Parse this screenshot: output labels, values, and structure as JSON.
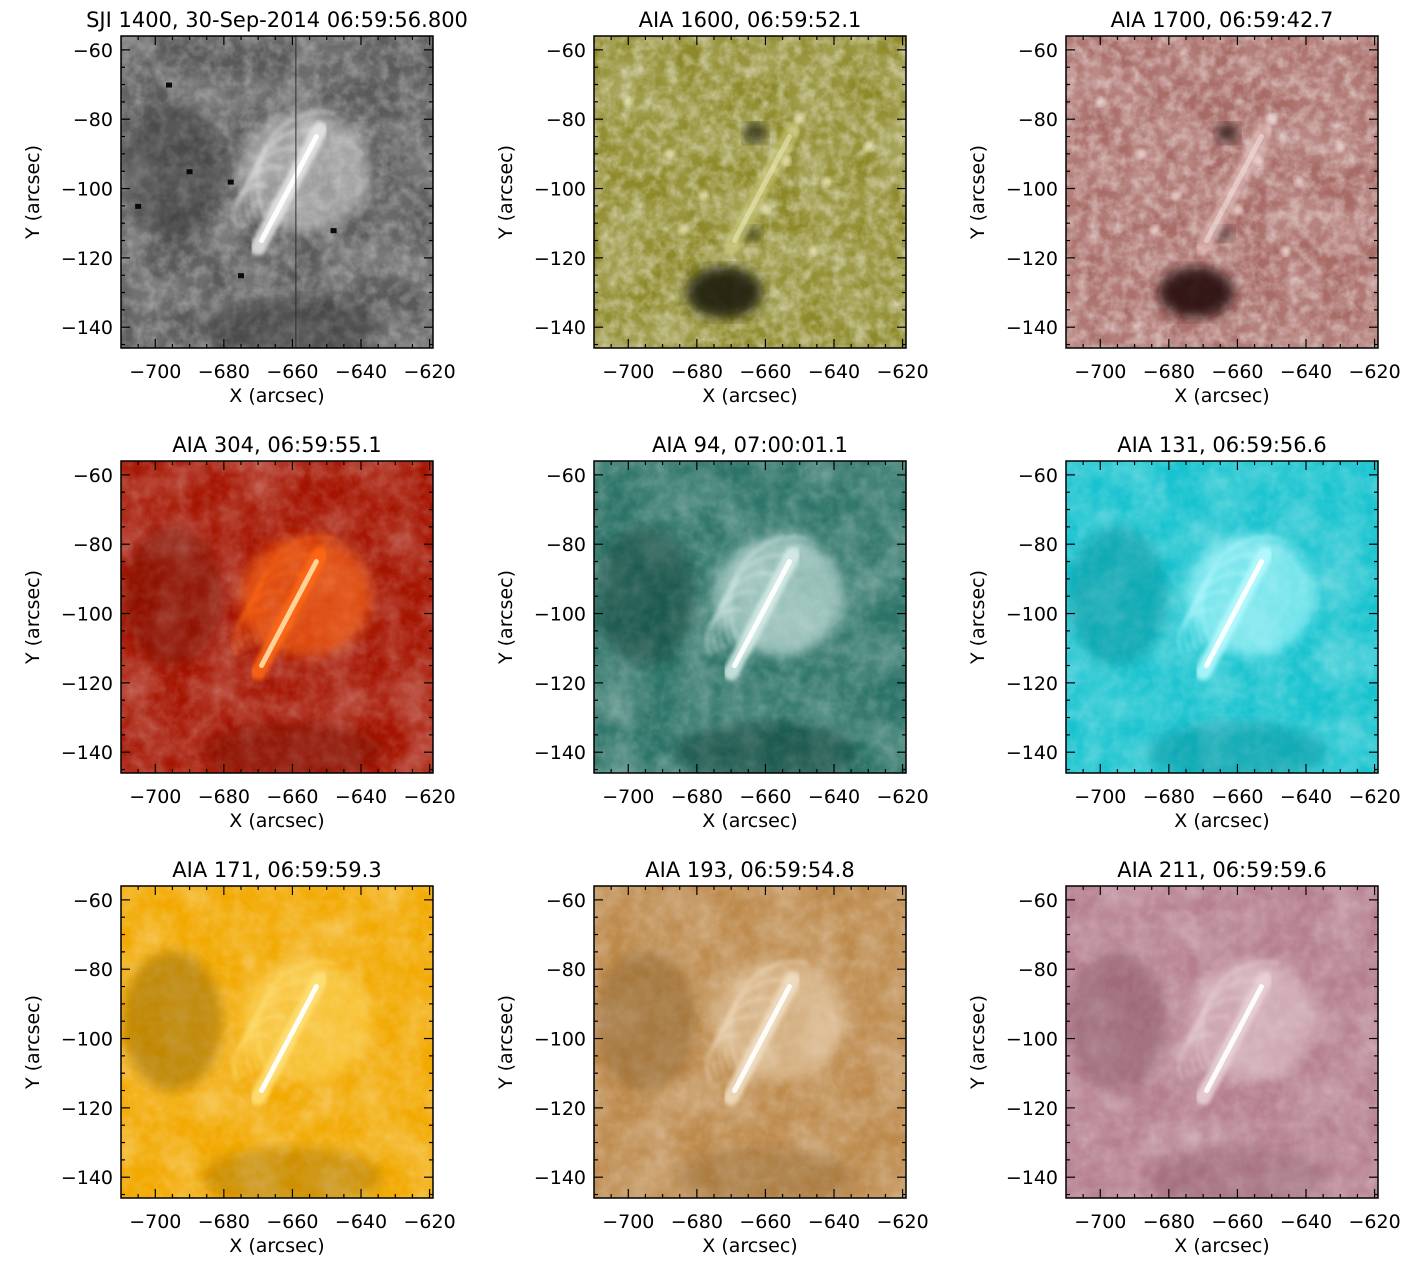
{
  "panels": [
    {
      "title": "SJI 1400, 30-Sep-2014 06:59:56.800",
      "colormap": "sji1400",
      "base": "#5a5a5a",
      "loop": "#e8e8e8",
      "dark": "#202020",
      "core": "#ffffff",
      "theme": "sji"
    },
    {
      "title": "AIA 1600, 06:59:52.1",
      "colormap": "aia1600",
      "base": "#8e8a2a",
      "loop": "#d6d486",
      "dark": "#1e1e08",
      "core": "#f4f2c8",
      "theme": "chromo"
    },
    {
      "title": "AIA 1700, 06:59:42.7",
      "colormap": "aia1700",
      "base": "#a86b66",
      "loop": "#e6c3bf",
      "dark": "#260808",
      "core": "#f8e8e6",
      "theme": "chromo"
    },
    {
      "title": "AIA 304, 06:59:55.1",
      "colormap": "aia304",
      "base": "#a51400",
      "loop": "#ff6a12",
      "dark": "#6a0900",
      "core": "#ffd8a0",
      "theme": "flare"
    },
    {
      "title": "AIA 94, 07:00:01.1",
      "colormap": "aia94",
      "base": "#2d7468",
      "loop": "#d9eeea",
      "dark": "#062a22",
      "core": "#ffffff",
      "theme": "flare"
    },
    {
      "title": "AIA 131, 06:59:56.6",
      "colormap": "aia131",
      "base": "#17c3cf",
      "loop": "#b8fbff",
      "dark": "#007f88",
      "core": "#ffffff",
      "theme": "flare"
    },
    {
      "title": "AIA 171, 06:59:59.3",
      "colormap": "aia171",
      "base": "#f2a900",
      "loop": "#ffe27a",
      "dark": "#6a4a00",
      "core": "#ffffff",
      "theme": "corona"
    },
    {
      "title": "AIA 193, 06:59:54.8",
      "colormap": "aia193",
      "base": "#bd8a4c",
      "loop": "#f2e0c4",
      "dark": "#7c5424",
      "core": "#ffffff",
      "theme": "corona"
    },
    {
      "title": "AIA 211, 06:59:59.6",
      "colormap": "aia211",
      "base": "#b57f8e",
      "loop": "#ead4d9",
      "dark": "#7a4658",
      "core": "#ffffff",
      "theme": "corona"
    }
  ],
  "xaxis": {
    "label": "X (arcsec)",
    "range": [
      -710,
      -619
    ],
    "ticks": [
      -700,
      -680,
      -660,
      -640,
      -620
    ],
    "tick_labels": [
      "−700",
      "−680",
      "−660",
      "−640",
      "−620"
    ]
  },
  "yaxis": {
    "label": "Y (arcsec)",
    "range": [
      -146,
      -56
    ],
    "ticks": [
      -60,
      -80,
      -100,
      -120,
      -140
    ],
    "tick_labels": [
      "−60",
      "−80",
      "−100",
      "−120",
      "−140"
    ]
  }
}
